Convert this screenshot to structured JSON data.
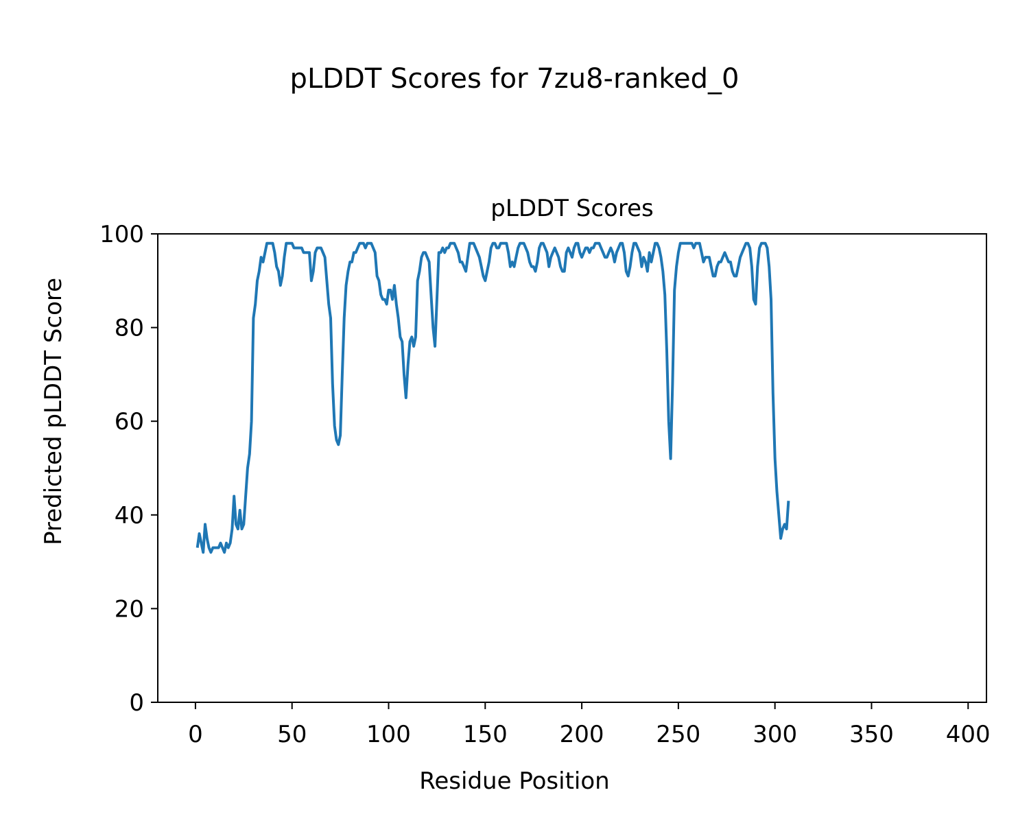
{
  "figure": {
    "suptitle": "pLDDT Scores for 7zu8-ranked_0"
  },
  "chart_data": {
    "type": "line",
    "title": "pLDDT Scores",
    "xlabel": "Residue Position",
    "ylabel": "Predicted pLDDT Score",
    "xlim": [
      -19.5,
      409.5
    ],
    "ylim": [
      0,
      100
    ],
    "xticks": [
      0,
      50,
      100,
      150,
      200,
      250,
      300,
      350,
      400
    ],
    "yticks": [
      0,
      20,
      40,
      60,
      80,
      100
    ],
    "grid": false,
    "legend": "none",
    "line_color": "#1f77b4",
    "series": [
      {
        "x_start": 1,
        "x_step": 1,
        "values": [
          33,
          36,
          34,
          32,
          38,
          35,
          33,
          32,
          33,
          33,
          33,
          33,
          34,
          33,
          32,
          34,
          33,
          34,
          37,
          44,
          38,
          37,
          41,
          37,
          38,
          44,
          50,
          53,
          60,
          82,
          85,
          90,
          92,
          95,
          94,
          96,
          98,
          98,
          98,
          98,
          96,
          93,
          92,
          89,
          91,
          95,
          98,
          98,
          98,
          98,
          97,
          97,
          97,
          97,
          97,
          96,
          96,
          96,
          96,
          90,
          92,
          96,
          97,
          97,
          97,
          96,
          95,
          90,
          85,
          82,
          68,
          59,
          56,
          55,
          57,
          70,
          82,
          89,
          92,
          94,
          94,
          96,
          96,
          97,
          98,
          98,
          98,
          97,
          98,
          98,
          98,
          97,
          96,
          91,
          90,
          87,
          86,
          86,
          85,
          88,
          88,
          86,
          89,
          85,
          82,
          78,
          77,
          70,
          65,
          72,
          77,
          78,
          76,
          78,
          90,
          92,
          95,
          96,
          96,
          95,
          94,
          87,
          80,
          76,
          86,
          96,
          96,
          97,
          96,
          97,
          97,
          98,
          98,
          98,
          97,
          96,
          94,
          94,
          93,
          92,
          95,
          98,
          98,
          98,
          97,
          96,
          95,
          93,
          91,
          90,
          92,
          94,
          97,
          98,
          98,
          97,
          97,
          98,
          98,
          98,
          98,
          96,
          93,
          94,
          93,
          95,
          97,
          98,
          98,
          98,
          97,
          96,
          94,
          93,
          93,
          92,
          94,
          97,
          98,
          98,
          97,
          96,
          93,
          95,
          96,
          97,
          96,
          95,
          93,
          92,
          92,
          96,
          97,
          96,
          95,
          97,
          98,
          98,
          96,
          95,
          96,
          97,
          97,
          96,
          97,
          97,
          98,
          98,
          98,
          97,
          96,
          95,
          95,
          96,
          97,
          96,
          94,
          96,
          97,
          98,
          98,
          96,
          92,
          91,
          93,
          96,
          98,
          98,
          97,
          96,
          93,
          95,
          94,
          92,
          96,
          94,
          96,
          98,
          98,
          97,
          95,
          92,
          87,
          75,
          60,
          52,
          68,
          88,
          93,
          96,
          98,
          98,
          98,
          98,
          98,
          98,
          98,
          97,
          98,
          98,
          98,
          96,
          94,
          95,
          95,
          95,
          93,
          91,
          91,
          93,
          94,
          94,
          95,
          96,
          95,
          94,
          94,
          92,
          91,
          91,
          93,
          95,
          96,
          97,
          98,
          98,
          97,
          93,
          86,
          85,
          93,
          97,
          98,
          98,
          98,
          97,
          93,
          86,
          66,
          52,
          45,
          40,
          35,
          37,
          38,
          37,
          43
        ]
      }
    ]
  }
}
